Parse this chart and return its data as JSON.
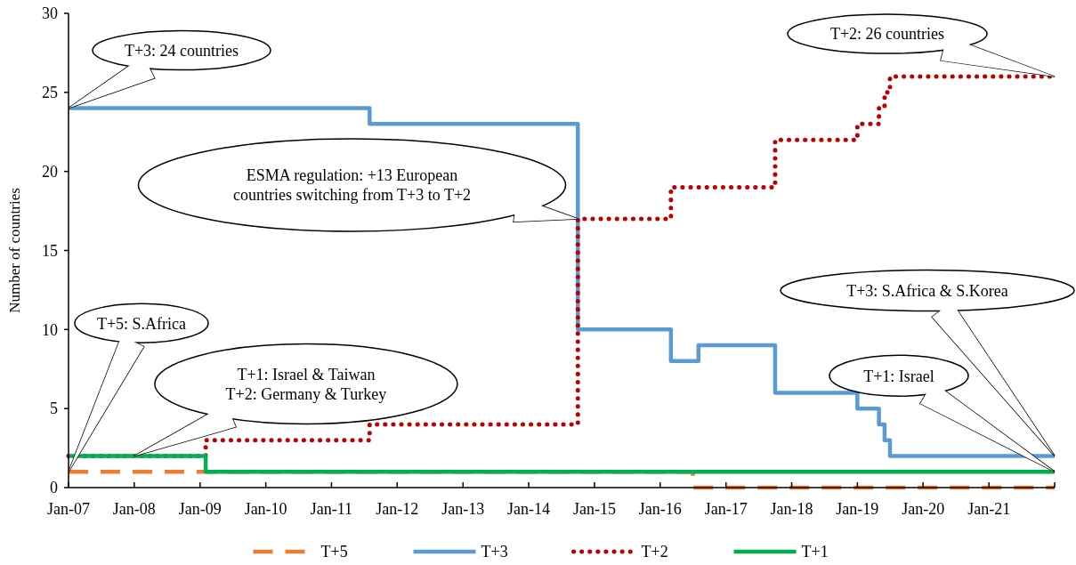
{
  "chart_data": {
    "type": "step",
    "ylabel": "Number of countries",
    "xlim": [
      "2007-01",
      "2022-01"
    ],
    "xticks": [
      {
        "value": "2007-01",
        "label": "Jan-07"
      },
      {
        "value": "2008-01",
        "label": "Jan-08"
      },
      {
        "value": "2009-01",
        "label": "Jan-09"
      },
      {
        "value": "2010-01",
        "label": "Jan-10"
      },
      {
        "value": "2011-01",
        "label": "Jan-11"
      },
      {
        "value": "2012-01",
        "label": "Jan-12"
      },
      {
        "value": "2013-01",
        "label": "Jan-13"
      },
      {
        "value": "2014-01",
        "label": "Jan-14"
      },
      {
        "value": "2015-01",
        "label": "Jan-15"
      },
      {
        "value": "2016-01",
        "label": "Jan-16"
      },
      {
        "value": "2017-01",
        "label": "Jan-17"
      },
      {
        "value": "2018-01",
        "label": "Jan-18"
      },
      {
        "value": "2019-01",
        "label": "Jan-19"
      },
      {
        "value": "2020-01",
        "label": "Jan-20"
      },
      {
        "value": "2021-01",
        "label": "Jan-21"
      },
      {
        "value": "2022-01",
        "label": null
      }
    ],
    "ylim": [
      0,
      30
    ],
    "yticks": [
      0,
      5,
      10,
      15,
      20,
      25,
      30
    ],
    "grid": false,
    "legend": "bottom",
    "series": [
      {
        "name": "T+5",
        "color": "#ed7d31",
        "line_style": "dashed",
        "x": [
          "2007-01",
          "2016-07",
          "2022-01"
        ],
        "values": [
          1,
          0,
          0
        ]
      },
      {
        "name": "T+3",
        "color": "#5b9bd5",
        "line_style": "solid",
        "x": [
          "2007-01",
          "2011-08",
          "2014-10",
          "2016-03",
          "2016-08",
          "2017-10",
          "2019-01",
          "2019-05",
          "2019-06",
          "2019-07",
          "2022-01"
        ],
        "values": [
          24,
          23,
          10,
          8,
          9,
          6,
          5,
          4,
          3,
          2,
          2
        ]
      },
      {
        "name": "T+2",
        "color": "#c00000",
        "line_style": "dotted",
        "x": [
          "2007-01",
          "2009-02",
          "2011-08",
          "2014-10",
          "2016-03",
          "2017-10",
          "2019-01",
          "2019-05",
          "2019-06",
          "2019-07",
          "2022-01"
        ],
        "values": [
          2,
          3,
          4,
          17,
          19,
          22,
          23,
          24,
          25,
          26,
          26
        ]
      },
      {
        "name": "T+1",
        "color": "#00b050",
        "line_style": "solid",
        "x": [
          "2007-01",
          "2009-02",
          "2022-01"
        ],
        "values": [
          2,
          1,
          1
        ]
      }
    ],
    "annotations": [
      "T+3: 24 countries",
      "T+2: 26 countries",
      "ESMA regulation: +13 European\ncountries switching from T+3 to T+2",
      "T+5: S.Africa",
      "T+1: Israel & Taiwan\nT+2: Germany & Turkey",
      "T+3: S.Africa & S.Korea",
      "T+1: Israel"
    ]
  }
}
